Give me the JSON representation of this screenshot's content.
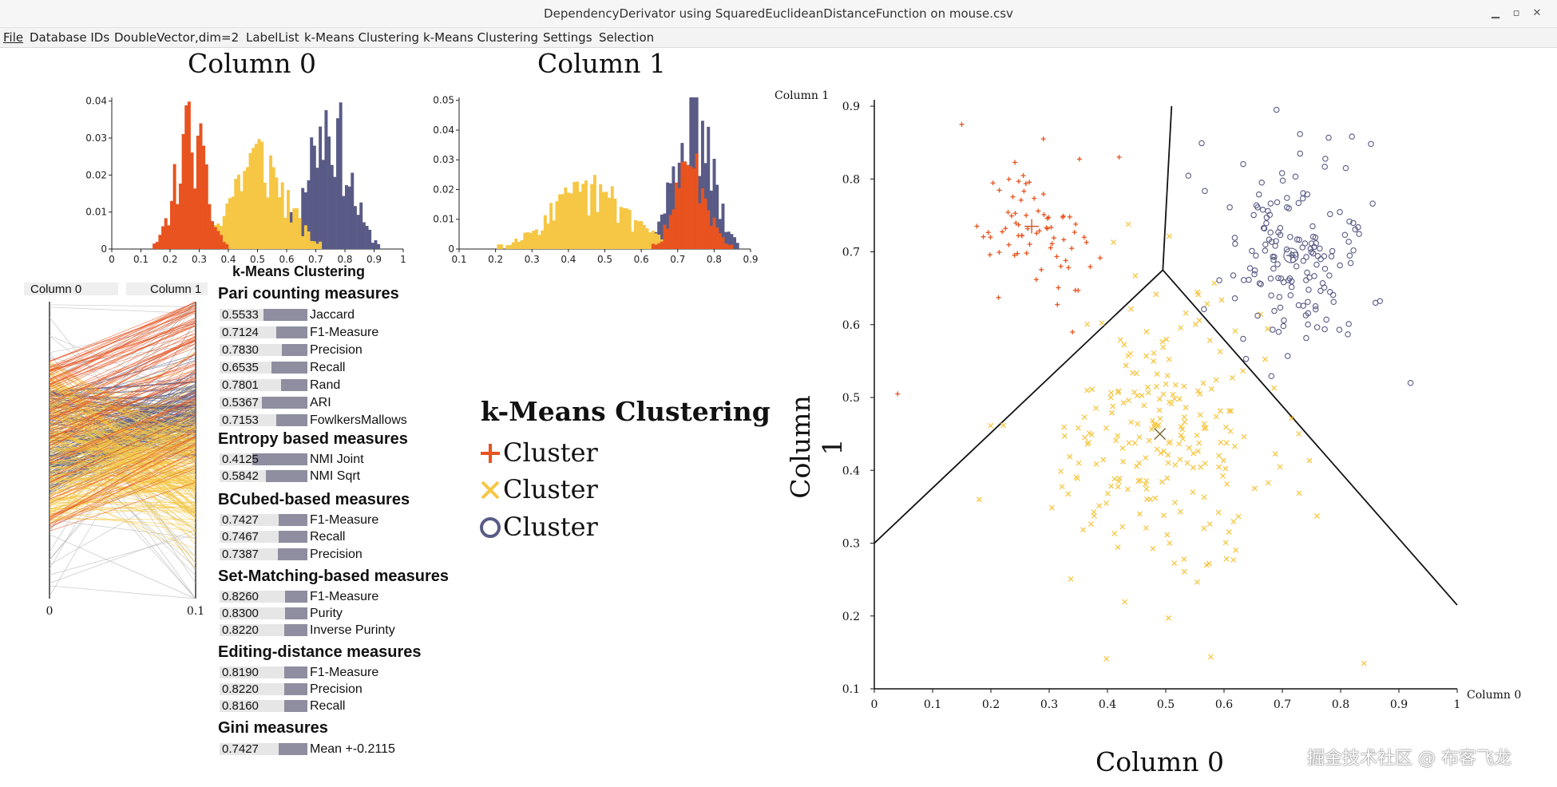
{
  "window": {
    "title": "DependencyDerivator using SquaredEuclideanDistanceFunction on mouse.csv",
    "minimize": "▁",
    "maximize": "▫",
    "close": "✕"
  },
  "menu": [
    "File",
    "Database IDs",
    "DoubleVector,dim=2",
    "LabelList",
    "k-Means Clustering",
    "k-Means Clustering",
    "Settings",
    "Selection"
  ],
  "colors": {
    "orange": "#e8531f",
    "yellow": "#f6c744",
    "purple": "#595b86",
    "gray": "#b5b5b5"
  },
  "histograms": [
    {
      "title": "Column 0",
      "yticks": [
        "0",
        "0.01",
        "0.02",
        "0.03",
        "0.04"
      ],
      "xticks": [
        "0",
        "0.1",
        "0.2",
        "0.3",
        "0.4",
        "0.5",
        "0.6",
        "0.7",
        "0.8",
        "0.9",
        "1"
      ],
      "ymax": 0.041,
      "xrange": [
        0,
        1
      ]
    },
    {
      "title": "Column 1",
      "yticks": [
        "0",
        "0.01",
        "0.02",
        "0.03",
        "0.04",
        "0.05"
      ],
      "xticks": [
        "0.1",
        "0.2",
        "0.3",
        "0.4",
        "0.5",
        "0.6",
        "0.7",
        "0.8",
        "0.9"
      ],
      "ymax": 0.051,
      "xrange": [
        0.1,
        0.9
      ]
    }
  ],
  "parallel": {
    "axis0_label": "Column 0",
    "axis1_label": "Column 1",
    "axis0_top": "1",
    "axis0_bottom": "0",
    "axis1_top": "0.9",
    "axis1_bottom": "0.1"
  },
  "evaluation": {
    "title": "k-Means Clustering",
    "sections": [
      {
        "heading": "Pari counting measures",
        "rows": [
          {
            "value": "0.5533",
            "label": "Jaccard",
            "fraction": 0.5533
          },
          {
            "value": "0.7124",
            "label": "F1-Measure",
            "fraction": 0.7124
          },
          {
            "value": "0.7830",
            "label": "Precision",
            "fraction": 0.783
          },
          {
            "value": "0.6535",
            "label": "Recall",
            "fraction": 0.6535
          },
          {
            "value": "0.7801",
            "label": "Rand",
            "fraction": 0.7801
          },
          {
            "value": "0.5367",
            "label": "ARI",
            "fraction": 0.5367
          },
          {
            "value": "0.7153",
            "label": "FowlkersMallows",
            "fraction": 0.7153
          }
        ]
      },
      {
        "heading": "Entropy based measures",
        "rows": [
          {
            "value": "0.4125",
            "label": "NMI Joint",
            "fraction": 0.4125
          },
          {
            "value": "0.5842",
            "label": "NMI Sqrt",
            "fraction": 0.5842
          }
        ]
      },
      {
        "heading": "BCubed-based measures",
        "rows": [
          {
            "value": "0.7427",
            "label": "F1-Measure",
            "fraction": 0.7427
          },
          {
            "value": "0.7467",
            "label": "Recall",
            "fraction": 0.7467
          },
          {
            "value": "0.7387",
            "label": "Precision",
            "fraction": 0.7387
          }
        ]
      },
      {
        "heading": "Set-Matching-based measures",
        "rows": [
          {
            "value": "0.8260",
            "label": "F1-Measure",
            "fraction": 0.826
          },
          {
            "value": "0.8300",
            "label": "Purity",
            "fraction": 0.83
          },
          {
            "value": "0.8220",
            "label": "Inverse Purinty",
            "fraction": 0.822
          }
        ]
      },
      {
        "heading": "Editing-distance measures",
        "rows": [
          {
            "value": "0.8190",
            "label": "F1-Measure",
            "fraction": 0.819
          },
          {
            "value": "0.8220",
            "label": "Precision",
            "fraction": 0.822
          },
          {
            "value": "0.8160",
            "label": "Recall",
            "fraction": 0.816
          }
        ]
      },
      {
        "heading": "Gini measures",
        "rows": [
          {
            "value": "0.7427",
            "label": "Mean +-0.2115",
            "fraction": 0.7427
          }
        ]
      }
    ]
  },
  "legend": {
    "title": "k-Means Clustering",
    "items": [
      {
        "label": "Cluster",
        "marker": "plus-icon",
        "color": "#e8531f"
      },
      {
        "label": "Cluster",
        "marker": "cross-icon",
        "color": "#f6c744"
      },
      {
        "label": "Cluster",
        "marker": "circle-icon",
        "color": "#595b86"
      }
    ]
  },
  "chart_data": {
    "type": "scatter",
    "title": "",
    "xlabel": "Column 0",
    "ylabel": "Column 1",
    "x_axis_label": "Column 0",
    "y_axis_label": "Column 1",
    "xlim": [
      0,
      1
    ],
    "ylim": [
      0.1,
      0.9
    ],
    "xticks": [
      "0",
      "0.1",
      "0.2",
      "0.3",
      "0.4",
      "0.5",
      "0.6",
      "0.7",
      "0.8",
      "0.9",
      "1"
    ],
    "yticks": [
      "0.1",
      "0.2",
      "0.3",
      "0.4",
      "0.5",
      "0.6",
      "0.7",
      "0.8",
      "0.9"
    ],
    "series": [
      {
        "marker": "plus",
        "color": "#e8531f",
        "center": [
          0.27,
          0.735
        ],
        "spread": [
          0.05,
          0.045
        ],
        "count": 70,
        "extra": [
          [
            0.15,
            0.875
          ],
          [
            0.04,
            0.505
          ],
          [
            0.42,
            0.83
          ],
          [
            0.36,
            0.72
          ],
          [
            0.34,
            0.59
          ],
          [
            0.29,
            0.855
          ]
        ]
      },
      {
        "marker": "cross",
        "color": "#f6c744",
        "center": [
          0.49,
          0.45
        ],
        "spread": [
          0.09,
          0.09
        ],
        "count": 230,
        "extra": [
          [
            0.18,
            0.36
          ],
          [
            0.84,
            0.135
          ],
          [
            0.57,
            0.27
          ]
        ]
      },
      {
        "marker": "circle",
        "color": "#595b86",
        "center": [
          0.72,
          0.695
        ],
        "spread": [
          0.065,
          0.07
        ],
        "count": 160,
        "extra": [
          [
            0.92,
            0.52
          ],
          [
            0.69,
            0.895
          ],
          [
            0.86,
            0.63
          ]
        ]
      }
    ],
    "centroids": [
      {
        "marker": "plus",
        "x": 0.27,
        "y": 0.735
      },
      {
        "marker": "cross",
        "x": 0.49,
        "y": 0.45
      },
      {
        "marker": "circle",
        "x": 0.715,
        "y": 0.695
      }
    ],
    "voronoi": [
      [
        [
          0.0,
          0.3
        ],
        [
          0.495,
          0.675
        ]
      ],
      [
        [
          0.495,
          0.675
        ],
        [
          0.51,
          0.9
        ]
      ],
      [
        [
          0.495,
          0.675
        ],
        [
          1.0,
          0.215
        ]
      ]
    ]
  },
  "watermark": "掘金技术社区 @ 布客飞龙"
}
